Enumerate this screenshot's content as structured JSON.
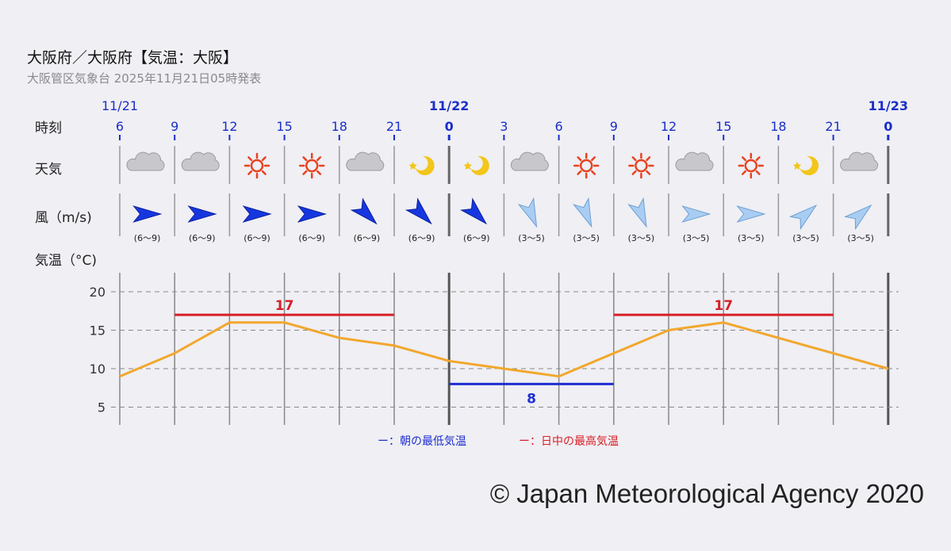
{
  "header": {
    "title": "大阪府／大阪府【気温：大阪】",
    "subtitle": "大阪管区気象台 2025年11月21日05時発表"
  },
  "row_labels": {
    "time": "時刻",
    "weather": "天気",
    "wind": "風（m/s)",
    "temperature": "気温（°C)"
  },
  "date_labels": [
    "11/21",
    "11/22",
    "11/23"
  ],
  "legend": {
    "min_label": "ー：朝の最低気温",
    "max_label": "ー：日中の最高気温"
  },
  "colors": {
    "line": "#f2a72c",
    "max": "#d81f26",
    "min": "#1e2fd0",
    "hour_text": "#1a2ec8",
    "grid": "#777777"
  },
  "copyright": "© Japan Meteorological Agency 2020",
  "chart_data": {
    "type": "line",
    "x": [
      "6",
      "9",
      "12",
      "15",
      "18",
      "21",
      "0",
      "3",
      "6",
      "9",
      "12",
      "15",
      "18",
      "21",
      "0"
    ],
    "values": [
      9,
      12,
      16,
      16,
      14,
      13,
      11,
      10,
      9,
      12,
      15,
      16,
      14,
      12,
      10
    ],
    "ylim": [
      2,
      22
    ],
    "yticks": [
      5,
      10,
      15,
      20
    ],
    "grid": true,
    "max_temps": [
      {
        "label": "17",
        "value": 17,
        "from": 1,
        "to": 5
      },
      {
        "label": "17",
        "value": 17,
        "from": 9,
        "to": 13
      }
    ],
    "min_temps": [
      {
        "label": "8",
        "value": 8,
        "from": 6,
        "to": 9
      }
    ],
    "weather": [
      "cloud-icon",
      "cloud-icon",
      "sun-icon",
      "sun-icon",
      "cloud-icon",
      "moon-icon",
      "moon-icon",
      "cloud-icon",
      "sun-icon",
      "sun-icon",
      "cloud-icon",
      "sun-icon",
      "moon-icon",
      "cloud-icon"
    ],
    "wind": [
      {
        "dir": "W",
        "speed": "(6〜9)",
        "strong": true
      },
      {
        "dir": "W",
        "speed": "(6〜9)",
        "strong": true
      },
      {
        "dir": "W",
        "speed": "(6〜9)",
        "strong": true
      },
      {
        "dir": "W",
        "speed": "(6〜9)",
        "strong": true
      },
      {
        "dir": "NW",
        "speed": "(6〜9)",
        "strong": true
      },
      {
        "dir": "NW",
        "speed": "(6〜9)",
        "strong": true
      },
      {
        "dir": "NW",
        "speed": "(6〜9)",
        "strong": true
      },
      {
        "dir": "NNW",
        "speed": "(3〜5)",
        "strong": false
      },
      {
        "dir": "NNW",
        "speed": "(3〜5)",
        "strong": false
      },
      {
        "dir": "NNW",
        "speed": "(3〜5)",
        "strong": false
      },
      {
        "dir": "W",
        "speed": "(3〜5)",
        "strong": false
      },
      {
        "dir": "W",
        "speed": "(3〜5)",
        "strong": false
      },
      {
        "dir": "SW",
        "speed": "(3〜5)",
        "strong": false
      },
      {
        "dir": "SW",
        "speed": "(3〜5)",
        "strong": false
      }
    ]
  }
}
